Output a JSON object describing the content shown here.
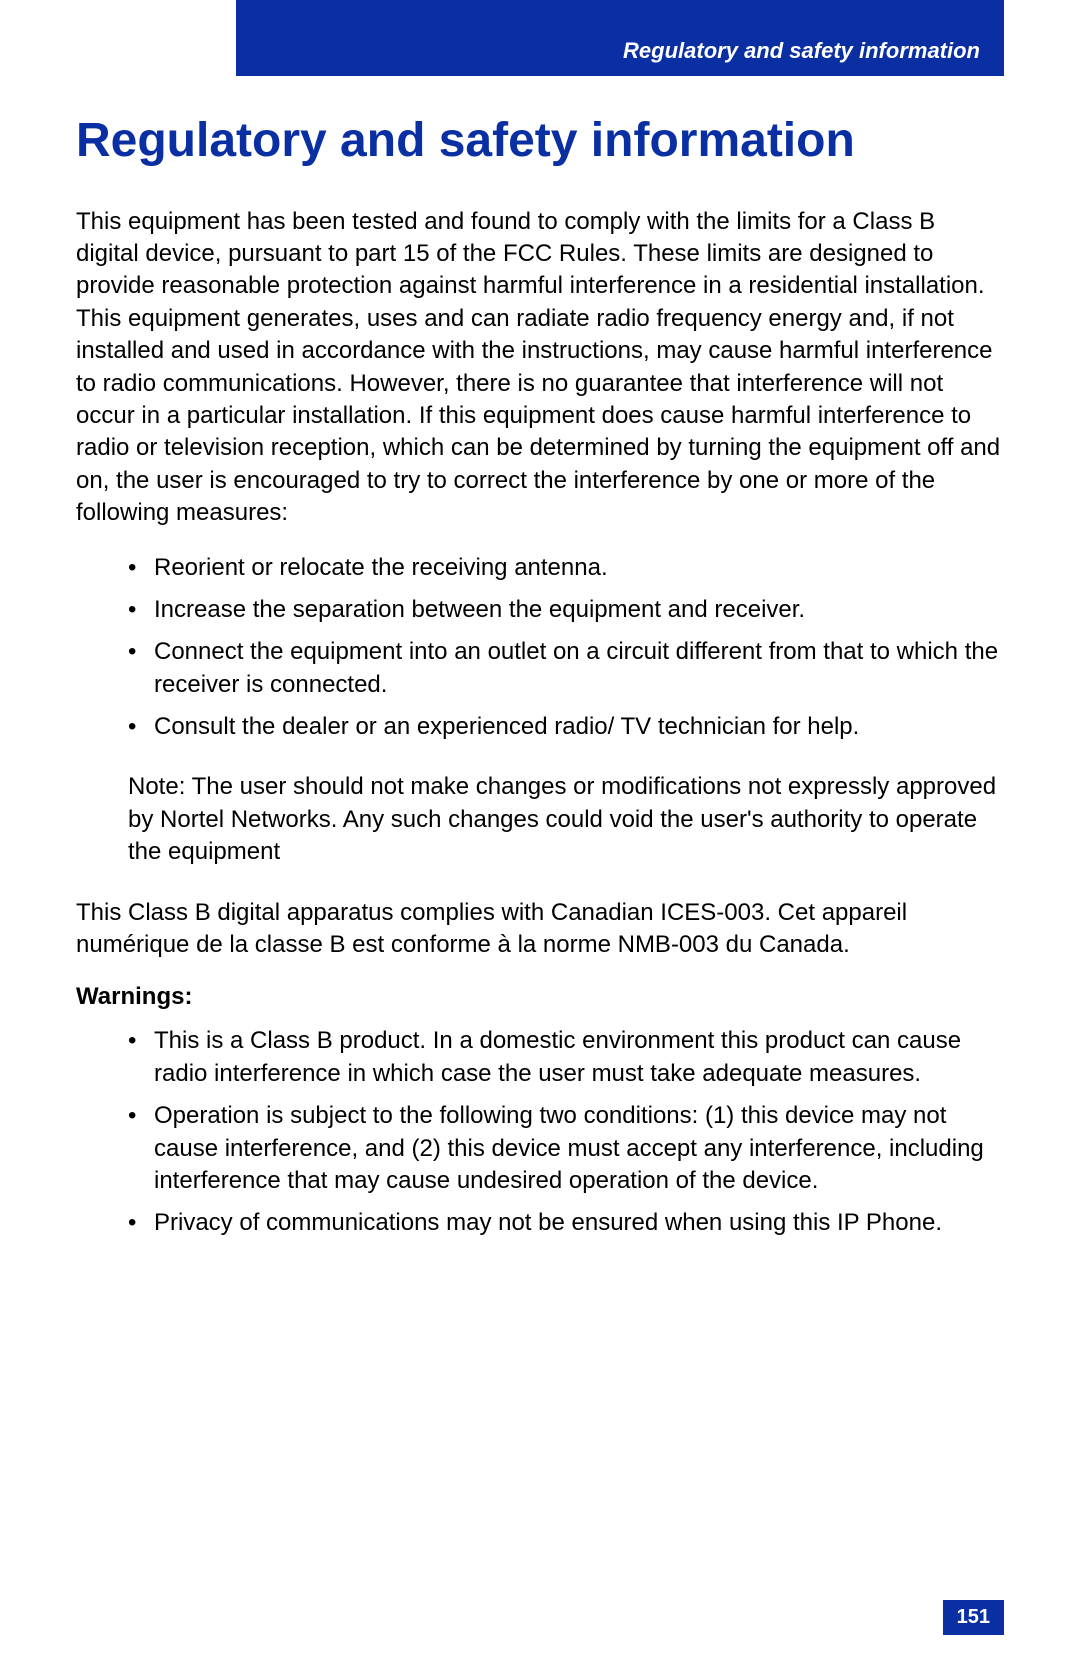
{
  "colors": {
    "brand_blue": "#0a2fa3",
    "white": "#ffffff",
    "black": "#000000"
  },
  "header": {
    "label": "Regulatory and safety information"
  },
  "title": "Regulatory and safety information",
  "intro_paragraph": "This equipment has been tested and found to comply with the limits for a Class B digital device, pursuant to part 15 of the FCC Rules. These limits are designed to provide reasonable protection against harmful interference in a residential installation. This equipment generates, uses and can radiate radio frequency energy and, if not installed and used in accordance with the instructions, may cause harmful interference to radio communications. However, there is no guarantee that interference will not occur in a particular installation. If this equipment does cause harmful interference to radio or television reception, which can be determined by turning the equipment off and on, the user is encouraged to try to correct the interference by one or more of the following measures:",
  "measures": [
    "Reorient or relocate the receiving antenna.",
    "Increase the separation between the equipment and receiver.",
    "Connect the equipment into an outlet on a circuit different from that to which the receiver is connected.",
    "Consult the dealer or an experienced radio/ TV technician for help."
  ],
  "note": "Note: The user should not make changes or modifications not expressly approved by Nortel Networks. Any such changes could void the user's authority to operate the equipment",
  "compliance_paragraph": "This Class B digital apparatus complies with Canadian ICES-003.   Cet appareil numérique de la classe B est conforme à la norme NMB-003 du Canada.",
  "warnings_heading": "Warnings:",
  "warnings": [
    "This is a Class B product. In a domestic environment this product can cause radio interference in which case the user must take adequate measures.",
    "Operation is subject to the following two conditions: (1) this device may not cause interference, and (2) this device must accept any interference, including interference that may cause undesired operation of the device.",
    "Privacy of communications may not be ensured when using this IP Phone."
  ],
  "page_number": "151"
}
